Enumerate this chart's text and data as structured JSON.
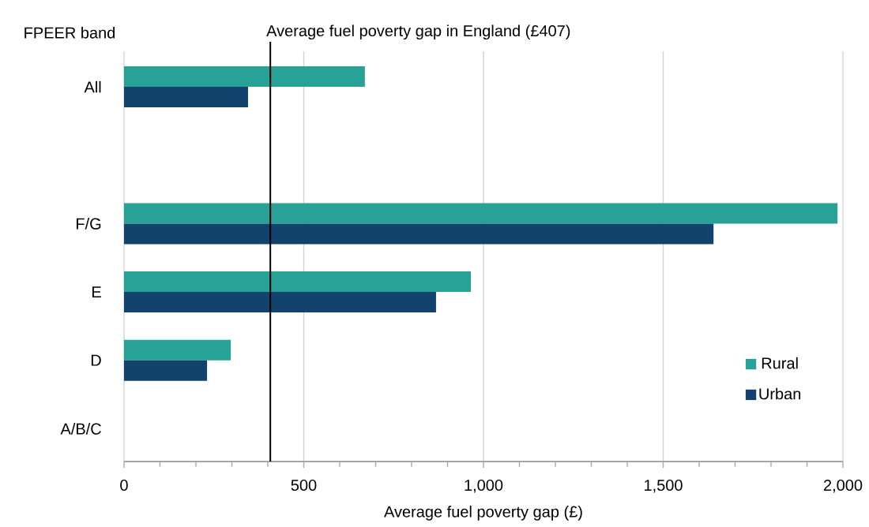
{
  "chart_data": {
    "type": "bar",
    "orientation": "horizontal",
    "ylabel": "FPEER band",
    "xlabel": "Average fuel poverty gap (£)",
    "categories": [
      "All",
      null,
      "F/G",
      "E",
      "D",
      "A/B/C"
    ],
    "series": [
      {
        "name": "Rural",
        "color": "#28a197",
        "values": [
          670,
          null,
          1985,
          965,
          297,
          null
        ]
      },
      {
        "name": "Urban",
        "color": "#12436d",
        "values": [
          345,
          null,
          1640,
          868,
          231,
          null
        ]
      }
    ],
    "xlim": [
      0,
      2000
    ],
    "xticks": [
      0,
      500,
      {
        "value": 1000,
        "label": "1,000"
      },
      {
        "value": 1500,
        "label": "1,500"
      },
      {
        "value": 2000,
        "label": "2,000"
      }
    ],
    "grid": "x",
    "legend": "right",
    "ref_lines": [
      {
        "axis": "x",
        "value": 407,
        "label": "Average fuel poverty gap in England (£407)",
        "color": "#000000"
      }
    ]
  }
}
